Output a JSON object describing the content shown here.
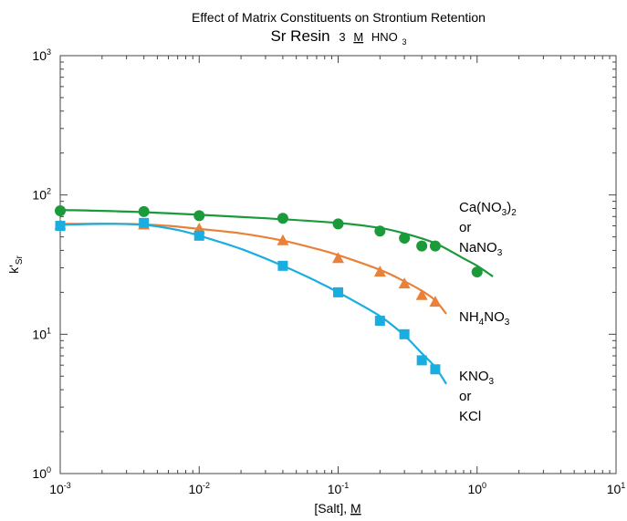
{
  "chart_data": {
    "type": "scatter",
    "title": "Effect of Matrix Constituents on Strontium Retention",
    "subtitle": {
      "main": "Sr Resin",
      "molarity_value": "3",
      "molarity_unit": "M",
      "acid_base": "HNO",
      "acid_sub": "3"
    },
    "xlabel": {
      "prefix": "[Salt], ",
      "unit": "M"
    },
    "ylabel": {
      "main": "k'",
      "sub": "Sr"
    },
    "x_scale": "log",
    "y_scale": "log",
    "xlim": [
      0.001,
      10
    ],
    "ylim": [
      1,
      1000
    ],
    "x_ticks": [
      {
        "value": 0.001,
        "base": "10",
        "exp": "-3"
      },
      {
        "value": 0.01,
        "base": "10",
        "exp": "-2"
      },
      {
        "value": 0.1,
        "base": "10",
        "exp": "-1"
      },
      {
        "value": 1,
        "base": "10",
        "exp": "0"
      },
      {
        "value": 10,
        "base": "10",
        "exp": "1"
      }
    ],
    "y_ticks": [
      {
        "value": 1,
        "base": "10",
        "exp": "0"
      },
      {
        "value": 10,
        "base": "10",
        "exp": "1"
      },
      {
        "value": 100,
        "base": "10",
        "exp": "2"
      },
      {
        "value": 1000,
        "base": "10",
        "exp": "3"
      }
    ],
    "grid": false,
    "series": [
      {
        "label_lines": [
          {
            "pre": "Ca(NO",
            "sub": "3",
            "post": ")",
            "post_sub": "2"
          },
          {
            "pre": "or"
          },
          {
            "pre": "NaNO",
            "sub": "3"
          }
        ],
        "color": "#1a9a3a",
        "marker": "circle",
        "points": [
          [
            0.001,
            77
          ],
          [
            0.004,
            76
          ],
          [
            0.01,
            71
          ],
          [
            0.04,
            68
          ],
          [
            0.1,
            62
          ],
          [
            0.2,
            55
          ],
          [
            0.3,
            49
          ],
          [
            0.4,
            43
          ],
          [
            0.5,
            43
          ],
          [
            1.0,
            28
          ]
        ],
        "fit": [
          [
            0.001,
            78
          ],
          [
            0.003,
            76
          ],
          [
            0.01,
            72
          ],
          [
            0.03,
            68
          ],
          [
            0.1,
            63
          ],
          [
            0.2,
            58
          ],
          [
            0.3,
            53
          ],
          [
            0.5,
            45
          ],
          [
            0.8,
            35
          ],
          [
            1.0,
            31
          ],
          [
            1.3,
            26
          ]
        ]
      },
      {
        "label_lines": [
          {
            "pre": "NH",
            "sub": "4",
            "post": "NO",
            "post_sub": "3"
          }
        ],
        "color": "#e8823a",
        "marker": "triangle",
        "points": [
          [
            0.001,
            61
          ],
          [
            0.004,
            61
          ],
          [
            0.01,
            57
          ],
          [
            0.04,
            47
          ],
          [
            0.1,
            35
          ],
          [
            0.2,
            28
          ],
          [
            0.3,
            23
          ],
          [
            0.4,
            19
          ],
          [
            0.5,
            17
          ]
        ],
        "fit": [
          [
            0.001,
            62
          ],
          [
            0.003,
            62
          ],
          [
            0.006,
            60
          ],
          [
            0.01,
            57
          ],
          [
            0.02,
            53
          ],
          [
            0.04,
            47
          ],
          [
            0.07,
            41
          ],
          [
            0.1,
            37
          ],
          [
            0.2,
            29
          ],
          [
            0.3,
            24
          ],
          [
            0.4,
            20.5
          ],
          [
            0.5,
            17.5
          ],
          [
            0.6,
            14
          ]
        ]
      },
      {
        "label_lines": [
          {
            "pre": "KNO",
            "sub": "3"
          },
          {
            "pre": "or"
          },
          {
            "pre": "KCl"
          }
        ],
        "color": "#1aaee0",
        "marker": "square",
        "points": [
          [
            0.001,
            60
          ],
          [
            0.004,
            63
          ],
          [
            0.01,
            51
          ],
          [
            0.04,
            31
          ],
          [
            0.1,
            20
          ],
          [
            0.2,
            12.5
          ],
          [
            0.3,
            10
          ],
          [
            0.4,
            6.5
          ],
          [
            0.5,
            5.6
          ]
        ],
        "fit": [
          [
            0.001,
            61
          ],
          [
            0.002,
            62
          ],
          [
            0.004,
            61
          ],
          [
            0.007,
            56
          ],
          [
            0.01,
            51
          ],
          [
            0.02,
            41
          ],
          [
            0.04,
            31
          ],
          [
            0.07,
            24
          ],
          [
            0.1,
            20
          ],
          [
            0.2,
            13.5
          ],
          [
            0.3,
            9.8
          ],
          [
            0.4,
            7.3
          ],
          [
            0.5,
            5.8
          ],
          [
            0.6,
            4.4
          ]
        ]
      }
    ]
  }
}
